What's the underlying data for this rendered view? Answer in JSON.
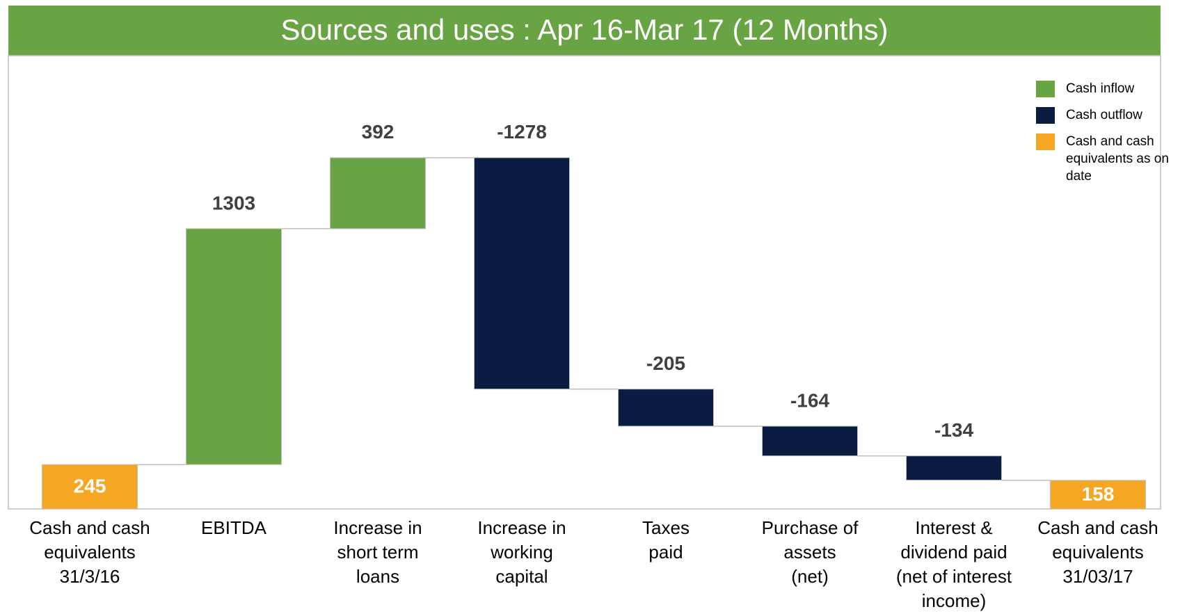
{
  "chart_data": {
    "type": "waterfall",
    "title": "Sources and uses : Apr 16-Mar 17 (12 Months)",
    "categories": [
      "Cash and cash\nequivalents\n31/3/16",
      "EBITDA",
      "Increase in\nshort term\nloans",
      "Increase in\nworking\ncapital",
      "Taxes\npaid",
      "Purchase of\nassets\n(net)",
      "Interest &\ndividend paid\n(net of interest\nincome)",
      "Cash and cash\nequivalents\n31/03/17"
    ],
    "values": [
      245,
      1303,
      392,
      -1278,
      -205,
      -164,
      -134,
      158
    ],
    "ylim": [
      0,
      2500
    ],
    "legend": [
      {
        "name": "Cash inflow",
        "color": "#68a444"
      },
      {
        "name": "Cash outflow",
        "color": "#0b1c43"
      },
      {
        "name": "Cash and cash equivalents as on date",
        "color": "#f5a623"
      }
    ]
  }
}
